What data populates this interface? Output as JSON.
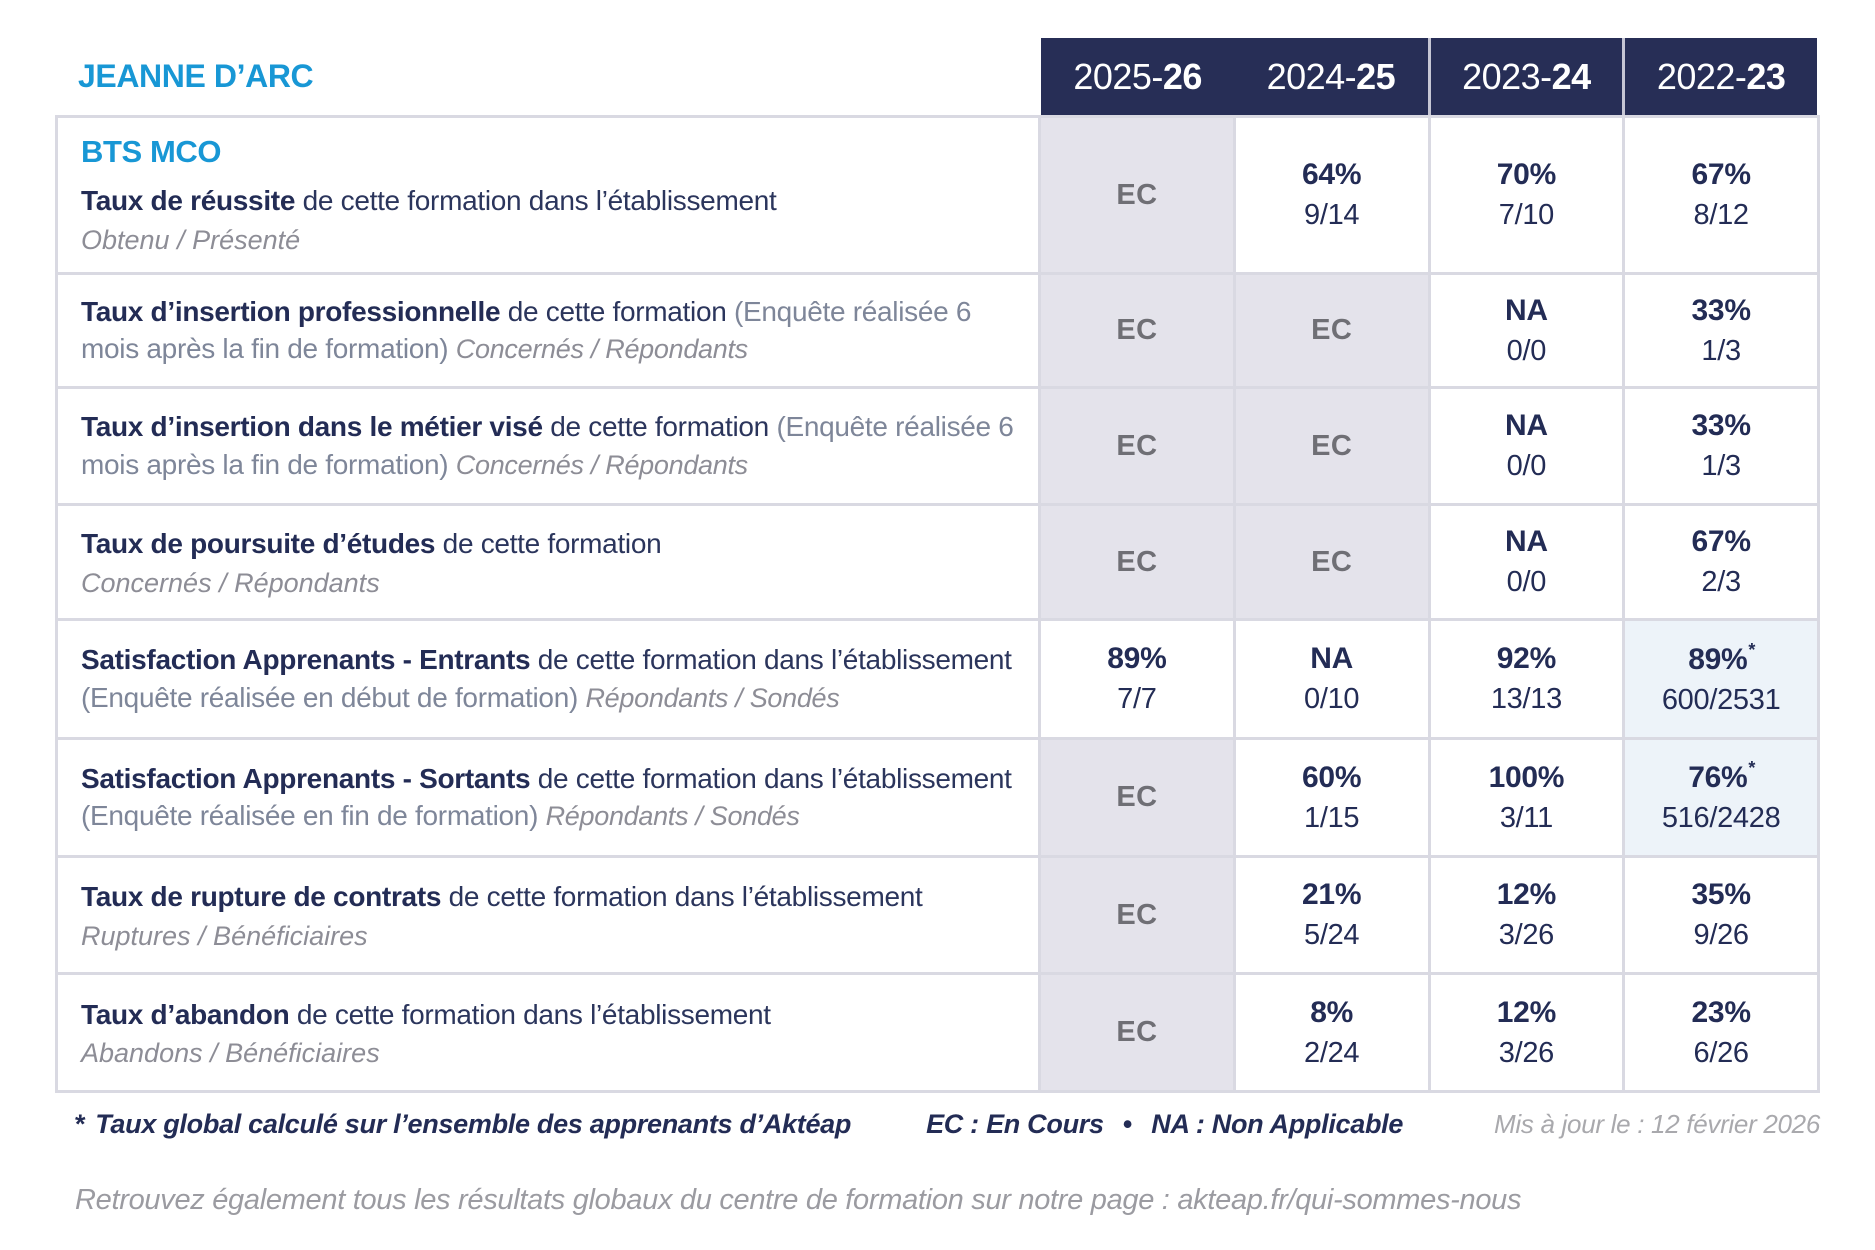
{
  "brand": "JEANNE D’ARC",
  "colors": {
    "accent_blue": "#1897d5",
    "header_bg": "#272e56",
    "navy_text": "#232c55",
    "gray_cell_bg": "#e4e3eb",
    "blue_cell_bg": "#edf3f9",
    "gray_text": "#8d8d96",
    "ec_text": "#6f6f75"
  },
  "table": {
    "columns": [
      {
        "prefix": "2025-",
        "bold": "26"
      },
      {
        "prefix": "2024-",
        "bold": "25"
      },
      {
        "prefix": "2023-",
        "bold": "24"
      },
      {
        "prefix": "2022-",
        "bold": "23"
      }
    ],
    "rows": [
      {
        "program": "BTS MCO",
        "title": "Taux de réussite",
        "desc": "de cette formation dans l’établissement",
        "paren": "",
        "legend": "Obtenu / Présenté",
        "legend_inline": false,
        "cells": [
          {
            "value": "EC",
            "detail": "",
            "bg": "gray",
            "star": false
          },
          {
            "value": "64%",
            "detail": "9/14",
            "bg": "white",
            "star": false
          },
          {
            "value": "70%",
            "detail": "7/10",
            "bg": "white",
            "star": false
          },
          {
            "value": "67%",
            "detail": "8/12",
            "bg": "white",
            "star": false
          }
        ]
      },
      {
        "program": "",
        "title": "Taux d’insertion professionnelle",
        "desc": "de cette formation",
        "paren": "(Enquête réalisée 6 mois après la fin de formation)",
        "legend": "Concernés / Répondants",
        "legend_inline": true,
        "cells": [
          {
            "value": "EC",
            "detail": "",
            "bg": "gray",
            "star": false
          },
          {
            "value": "EC",
            "detail": "",
            "bg": "gray",
            "star": false
          },
          {
            "value": "NA",
            "detail": "0/0",
            "bg": "white",
            "star": false
          },
          {
            "value": "33%",
            "detail": "1/3",
            "bg": "white",
            "star": false
          }
        ]
      },
      {
        "program": "",
        "title": "Taux d’insertion dans le métier visé",
        "desc": "de cette formation",
        "paren": "(Enquête réalisée 6 mois après la fin de formation)",
        "legend": "Concernés / Répondants",
        "legend_inline": true,
        "cells": [
          {
            "value": "EC",
            "detail": "",
            "bg": "gray",
            "star": false
          },
          {
            "value": "EC",
            "detail": "",
            "bg": "gray",
            "star": false
          },
          {
            "value": "NA",
            "detail": "0/0",
            "bg": "white",
            "star": false
          },
          {
            "value": "33%",
            "detail": "1/3",
            "bg": "white",
            "star": false
          }
        ]
      },
      {
        "program": "",
        "title": "Taux de poursuite d’études",
        "desc": "de cette formation",
        "paren": "",
        "legend": "Concernés / Répondants",
        "legend_inline": false,
        "cells": [
          {
            "value": "EC",
            "detail": "",
            "bg": "gray",
            "star": false
          },
          {
            "value": "EC",
            "detail": "",
            "bg": "gray",
            "star": false
          },
          {
            "value": "NA",
            "detail": "0/0",
            "bg": "white",
            "star": false
          },
          {
            "value": "67%",
            "detail": "2/3",
            "bg": "white",
            "star": false
          }
        ]
      },
      {
        "program": "",
        "title": "Satisfaction Apprenants - Entrants",
        "desc": "de cette formation dans l’établissement",
        "paren": "(Enquête réalisée en début de formation)",
        "legend": "Répondants / Sondés",
        "legend_inline": true,
        "cells": [
          {
            "value": "89%",
            "detail": "7/7",
            "bg": "white",
            "star": false
          },
          {
            "value": "NA",
            "detail": "0/10",
            "bg": "white",
            "star": false
          },
          {
            "value": "92%",
            "detail": "13/13",
            "bg": "white",
            "star": false
          },
          {
            "value": "89%",
            "detail": "600/2531",
            "bg": "blue",
            "star": true
          }
        ]
      },
      {
        "program": "",
        "title": "Satisfaction Apprenants - Sortants",
        "desc": "de cette formation dans l’établissement",
        "paren": "(Enquête réalisée en fin de formation)",
        "legend": "Répondants / Sondés",
        "legend_inline": true,
        "cells": [
          {
            "value": "EC",
            "detail": "",
            "bg": "gray",
            "star": false
          },
          {
            "value": "60%",
            "detail": "1/15",
            "bg": "white",
            "star": false
          },
          {
            "value": "100%",
            "detail": "3/11",
            "bg": "white",
            "star": false
          },
          {
            "value": "76%",
            "detail": "516/2428",
            "bg": "blue",
            "star": true
          }
        ]
      },
      {
        "program": "",
        "title": "Taux de rupture de contrats",
        "desc": "de cette formation dans l’établissement",
        "paren": "",
        "legend": "Ruptures / Bénéficiaires",
        "legend_inline": false,
        "cells": [
          {
            "value": "EC",
            "detail": "",
            "bg": "gray",
            "star": false
          },
          {
            "value": "21%",
            "detail": "5/24",
            "bg": "white",
            "star": false
          },
          {
            "value": "12%",
            "detail": "3/26",
            "bg": "white",
            "star": false
          },
          {
            "value": "35%",
            "detail": "9/26",
            "bg": "white",
            "star": false
          }
        ]
      },
      {
        "program": "",
        "title": "Taux d’abandon",
        "desc": "de cette formation dans l’établissement",
        "paren": "",
        "legend": "Abandons / Bénéficiaires",
        "legend_inline": false,
        "cells": [
          {
            "value": "EC",
            "detail": "",
            "bg": "gray",
            "star": false
          },
          {
            "value": "8%",
            "detail": "2/24",
            "bg": "white",
            "star": false
          },
          {
            "value": "12%",
            "detail": "3/26",
            "bg": "white",
            "star": false
          },
          {
            "value": "23%",
            "detail": "6/26",
            "bg": "white",
            "star": false
          }
        ]
      }
    ]
  },
  "footer": {
    "footnote_star": "*",
    "footnote": "Taux global calculé sur l’ensemble des apprenants d’Aktéap",
    "abbrev_ec": "EC : En Cours",
    "bullet": "•",
    "abbrev_na": "NA : Non Applicable",
    "updated": "Mis à jour le : 12 février 2026",
    "bottom_note": "Retrouvez également tous les résultats globaux du centre de formation sur notre page : akteap.fr/qui-sommes-nous"
  }
}
